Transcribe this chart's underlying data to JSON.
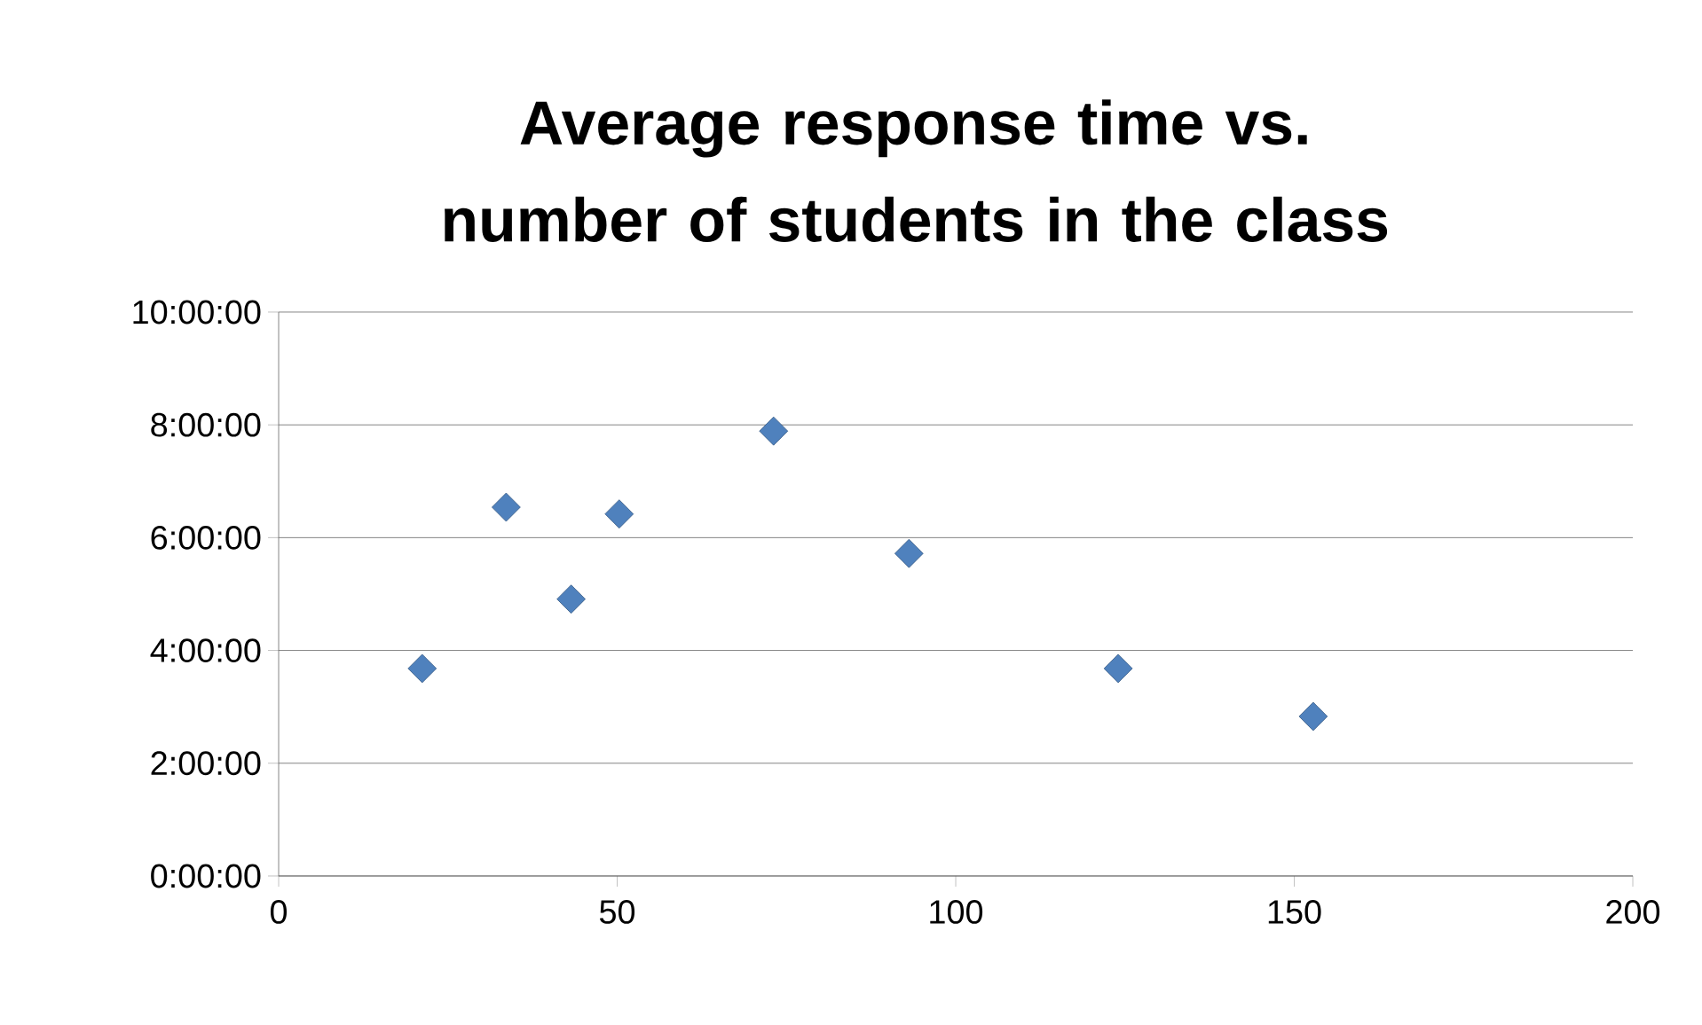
{
  "chart_data": {
    "type": "scatter",
    "title": "Average response time vs. number of students in the class",
    "x": [
      21.2,
      33.6,
      43.2,
      50.3,
      73.1,
      93.1,
      124,
      152.8
    ],
    "values": [
      3.68,
      6.54,
      4.91,
      6.42,
      7.89,
      5.72,
      3.68,
      2.83
    ],
    "color": "#4f81bd",
    "marker": "diamond",
    "grid": "y",
    "xlim": [
      0,
      200
    ],
    "xticks": [
      0,
      50,
      100,
      150,
      200
    ],
    "ylim": [
      0,
      10
    ],
    "yticks": [
      {
        "value": 0,
        "label": "0:00:00"
      },
      {
        "value": 2,
        "label": "2:00:00"
      },
      {
        "value": 4,
        "label": "4:00:00"
      },
      {
        "value": 6,
        "label": "6:00:00"
      },
      {
        "value": 8,
        "label": "8:00:00"
      },
      {
        "value": 10,
        "label": "10:00:00"
      }
    ]
  }
}
